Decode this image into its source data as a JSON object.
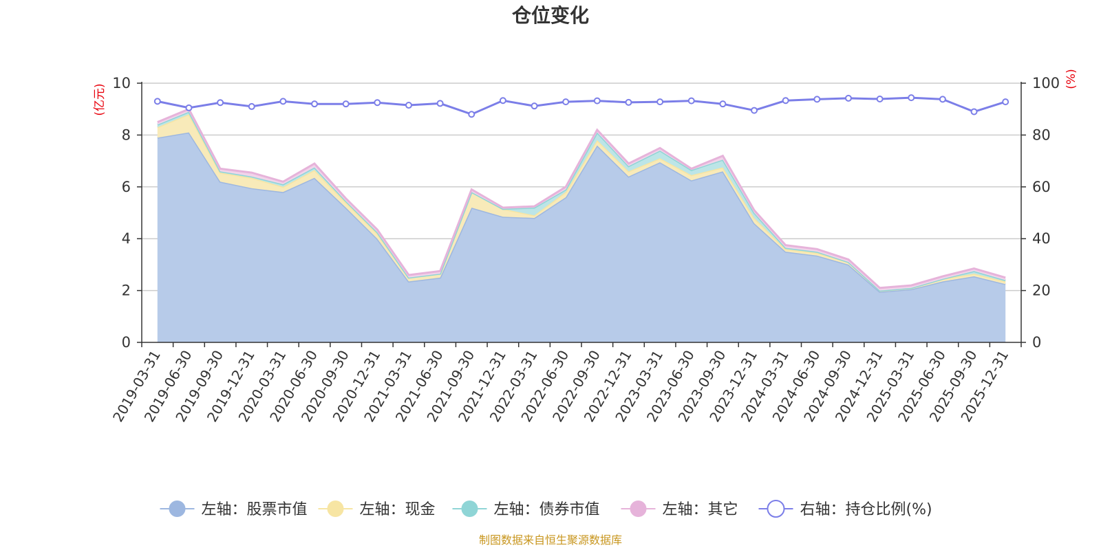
{
  "chart_data": {
    "type": "area",
    "title": "仓位变化",
    "categories": [
      "2019-03-31",
      "2019-06-30",
      "2019-09-30",
      "2019-12-31",
      "2020-03-31",
      "2020-06-30",
      "2020-09-30",
      "2020-12-31",
      "2021-03-31",
      "2021-06-30",
      "2021-09-30",
      "2021-12-31",
      "2022-03-31",
      "2022-06-30",
      "2022-09-30",
      "2022-12-31",
      "2023-03-31",
      "2023-06-30",
      "2023-09-30",
      "2023-12-31",
      "2024-03-31",
      "2024-06-30",
      "2024-09-30",
      "2024-12-31",
      "2025-03-31",
      "2025-06-30",
      "2025-09-30",
      "2025-12-31"
    ],
    "left_axis": {
      "unit_label": "(亿元)",
      "ylim": [
        0,
        10
      ],
      "ticks": [
        "0",
        "2",
        "4",
        "6",
        "8",
        "10"
      ]
    },
    "right_axis": {
      "unit_label": "(%)",
      "ylim": [
        0,
        100
      ],
      "ticks": [
        "0",
        "20",
        "40",
        "60",
        "80",
        "100"
      ]
    },
    "series": [
      {
        "name": "左轴：股票市值",
        "axis": "left",
        "stack": true,
        "color": "#9db7e0",
        "fill": "#b7cbe9",
        "values": [
          7.9,
          8.1,
          6.2,
          5.95,
          5.8,
          6.35,
          5.2,
          4.0,
          2.35,
          2.5,
          5.2,
          4.85,
          4.8,
          5.6,
          7.6,
          6.4,
          6.95,
          6.25,
          6.6,
          4.6,
          3.5,
          3.35,
          3.0,
          1.95,
          2.05,
          2.35,
          2.55,
          2.25
        ]
      },
      {
        "name": "左轴：现金",
        "axis": "left",
        "stack": true,
        "color": "#f7e5a3",
        "fill": "#f8eab9",
        "values": [
          0.4,
          0.7,
          0.35,
          0.4,
          0.2,
          0.3,
          0.2,
          0.2,
          0.15,
          0.15,
          0.6,
          0.3,
          0.1,
          0.2,
          0.2,
          0.2,
          0.15,
          0.2,
          0.15,
          0.2,
          0.1,
          0.1,
          0.1,
          0.05,
          0.05,
          0.1,
          0.1,
          0.1
        ]
      },
      {
        "name": "左轴：债券市值",
        "axis": "left",
        "stack": true,
        "color": "#8fd5d6",
        "fill": "#bce5e7",
        "values": [
          0.1,
          0.1,
          0.05,
          0.05,
          0.1,
          0.1,
          0.05,
          0.05,
          0.0,
          0.0,
          0.0,
          0.0,
          0.3,
          0.1,
          0.3,
          0.2,
          0.3,
          0.2,
          0.3,
          0.2,
          0.05,
          0.05,
          0.0,
          0.0,
          0.0,
          0.0,
          0.1,
          0.05
        ]
      },
      {
        "name": "左轴：其它",
        "axis": "left",
        "stack": true,
        "color": "#e6b3da",
        "fill": "#f1d4ea",
        "values": [
          0.1,
          0.1,
          0.1,
          0.15,
          0.1,
          0.15,
          0.1,
          0.1,
          0.1,
          0.1,
          0.1,
          0.05,
          0.05,
          0.1,
          0.1,
          0.1,
          0.1,
          0.05,
          0.15,
          0.1,
          0.1,
          0.1,
          0.1,
          0.1,
          0.1,
          0.1,
          0.1,
          0.1
        ]
      },
      {
        "name": "右轴：持仓比例(%)",
        "axis": "right",
        "type": "line",
        "color": "#7b7ee8",
        "values": [
          93,
          90.5,
          92.5,
          91,
          93,
          92,
          92,
          92.5,
          91.5,
          92.2,
          88,
          93.3,
          91.2,
          92.8,
          93.2,
          92.6,
          92.8,
          93.2,
          92,
          89.5,
          93.3,
          93.8,
          94.2,
          93.9,
          94.4,
          93.8,
          89,
          92.8
        ]
      }
    ],
    "source_note": "制图数据来自恒生聚源数据库"
  }
}
